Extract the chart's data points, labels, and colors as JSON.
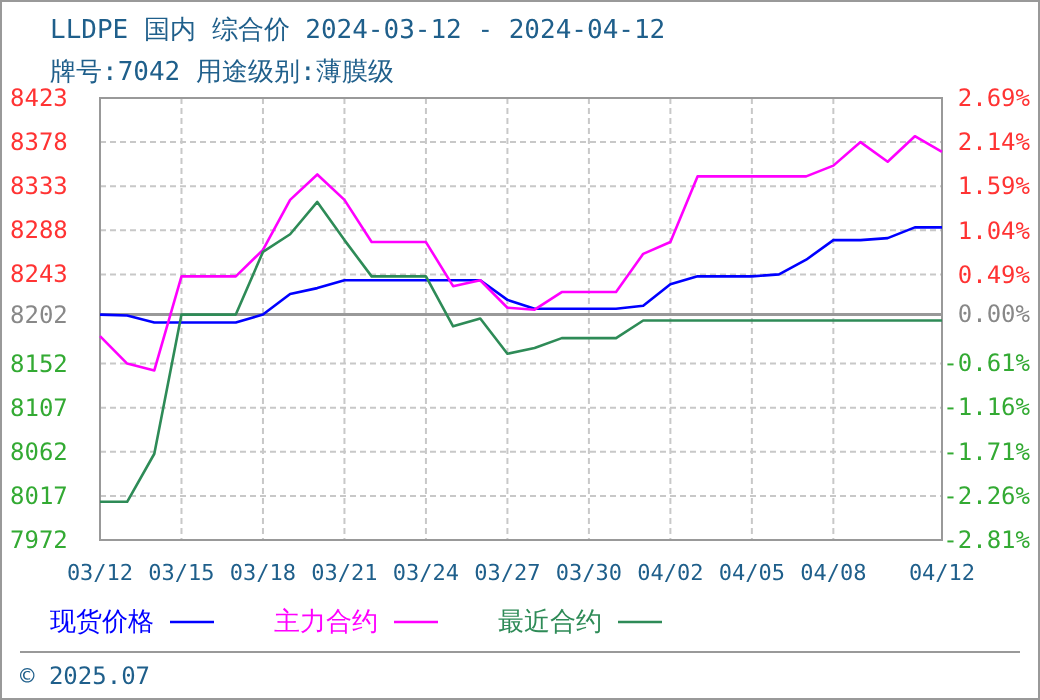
{
  "chart_data": {
    "type": "line",
    "title": "LLDPE 国内 综合价 2024-03-12 - 2024-04-12",
    "subtitle": "牌号:7042 用途级别:薄膜级",
    "x": [
      "2024-03-12",
      "2024-03-13",
      "2024-03-14",
      "2024-03-15",
      "2024-03-16",
      "2024-03-17",
      "2024-03-18",
      "2024-03-19",
      "2024-03-20",
      "2024-03-21",
      "2024-03-22",
      "2024-03-23",
      "2024-03-24",
      "2024-03-25",
      "2024-03-26",
      "2024-03-27",
      "2024-03-28",
      "2024-03-29",
      "2024-03-30",
      "2024-03-31",
      "2024-04-01",
      "2024-04-02",
      "2024-04-03",
      "2024-04-04",
      "2024-04-05",
      "2024-04-06",
      "2024-04-07",
      "2024-04-08",
      "2024-04-09",
      "2024-04-10",
      "2024-04-11",
      "2024-04-12"
    ],
    "series": [
      {
        "name": "现货价格",
        "color": "#0000ff",
        "values": [
          8202,
          8201,
          8194,
          8194,
          8194,
          8194,
          8202,
          8223,
          8229,
          8237,
          8237,
          8237,
          8237,
          8237,
          8237,
          8217,
          8208,
          8208,
          8208,
          8208,
          8211,
          8233,
          8241,
          8241,
          8241,
          8243,
          8258,
          8278,
          8278,
          8280,
          8291,
          8291
        ]
      },
      {
        "name": "主力合约",
        "color": "#ff00ff",
        "values": [
          8180,
          8152,
          8145,
          8241,
          8241,
          8241,
          8268,
          8319,
          8345,
          8319,
          8276,
          8276,
          8276,
          8231,
          8237,
          8209,
          8207,
          8225,
          8225,
          8225,
          8264,
          8276,
          8343,
          8343,
          8343,
          8343,
          8343,
          8354,
          8378,
          8358,
          8384,
          8368
        ]
      },
      {
        "name": "最近合约",
        "color": "#2e8b57",
        "values": [
          8011,
          8011,
          8060,
          8202,
          8202,
          8202,
          8266,
          8284,
          8317,
          8278,
          8241,
          8241,
          8241,
          8190,
          8198,
          8162,
          8168,
          8178,
          8178,
          8178,
          8196,
          8196,
          8196,
          8196,
          8196,
          8196,
          8196,
          8196,
          8196,
          8196,
          8196,
          8196
        ]
      }
    ],
    "xlim": [
      "2024-03-12",
      "2024-04-12"
    ],
    "xticks": [
      {
        "value": "2024-03-12",
        "label": "03/12"
      },
      {
        "value": "2024-03-15",
        "label": "03/15"
      },
      {
        "value": "2024-03-18",
        "label": "03/18"
      },
      {
        "value": "2024-03-21",
        "label": "03/21"
      },
      {
        "value": "2024-03-24",
        "label": "03/24"
      },
      {
        "value": "2024-03-27",
        "label": "03/27"
      },
      {
        "value": "2024-03-30",
        "label": "03/30"
      },
      {
        "value": "2024-04-02",
        "label": "04/02"
      },
      {
        "value": "2024-04-05",
        "label": "04/05"
      },
      {
        "value": "2024-04-08",
        "label": "04/08"
      },
      {
        "value": "2024-04-12",
        "label": "04/12"
      }
    ],
    "ylim": [
      7972,
      8423
    ],
    "yticks": [
      7972,
      8017,
      8062,
      8107,
      8152,
      8202,
      8243,
      8288,
      8333,
      8378,
      8423
    ],
    "y2lim": [
      -2.81,
      2.69
    ],
    "y2ticks": [
      {
        "value": -2.81,
        "label": "-2.81%"
      },
      {
        "value": -2.26,
        "label": "-2.26%"
      },
      {
        "value": -1.71,
        "label": "-1.71%"
      },
      {
        "value": -1.16,
        "label": "-1.16%"
      },
      {
        "value": -0.61,
        "label": "-0.61%"
      },
      {
        "value": 0,
        "label": "0.00%"
      },
      {
        "value": 0.49,
        "label": "0.49%"
      },
      {
        "value": 1.04,
        "label": "1.04%"
      },
      {
        "value": 1.59,
        "label": "1.59%"
      },
      {
        "value": 2.14,
        "label": "2.14%"
      },
      {
        "value": 2.69,
        "label": "2.69%"
      }
    ],
    "ref_lines": [
      {
        "axis": "y",
        "value": 8202,
        "color": "#999999"
      }
    ],
    "grid": true,
    "legend": "bottom",
    "annotations": [
      "© 2025.07"
    ]
  }
}
